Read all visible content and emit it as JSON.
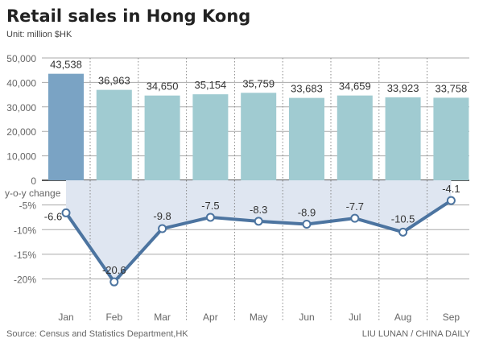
{
  "chart_data": [
    {
      "type": "bar",
      "title": "Retail sales in Hong Kong",
      "subtitle": "Unit: million $HK",
      "categories": [
        "Jan",
        "Feb",
        "Mar",
        "Apr",
        "May",
        "Jun",
        "Jul",
        "Aug",
        "Sep"
      ],
      "values": [
        43538,
        36963,
        34650,
        35154,
        35759,
        33683,
        34659,
        33923,
        33758
      ],
      "value_labels": [
        "43,538",
        "36,963",
        "34,650",
        "35,154",
        "35,759",
        "33,683",
        "34,659",
        "33,923",
        "33,758"
      ],
      "ylim": [
        0,
        50000
      ],
      "yticks": [
        "50,000",
        "40,000",
        "30,000",
        "20,000",
        "10,000",
        "0"
      ],
      "colors": {
        "highlight": "#7aa3c4",
        "bar": "#a0cbd1"
      },
      "grid": true
    },
    {
      "type": "line",
      "ylabel": "y-o-y change",
      "categories": [
        "Jan",
        "Feb",
        "Mar",
        "Apr",
        "May",
        "Jun",
        "Jul",
        "Aug",
        "Sep"
      ],
      "values": [
        -6.6,
        -20.6,
        -9.8,
        -7.5,
        -8.3,
        -8.9,
        -7.7,
        -10.5,
        -4.1
      ],
      "value_labels": [
        "-6.6",
        "-20.6",
        "-9.8",
        "-7.5",
        "-8.3",
        "-8.9",
        "-7.7",
        "-10.5",
        "-4.1"
      ],
      "ylim": [
        -20,
        0
      ],
      "yticks": [
        "-5%",
        "-10%",
        "-15%",
        "-20%"
      ],
      "colors": {
        "line": "#4c74a0",
        "fill": "#dfe6f1"
      },
      "grid": true
    }
  ],
  "footer": {
    "source": "Source: Census and Statistics Department,HK",
    "credit": "LIU LUNAN / CHINA DAILY"
  }
}
